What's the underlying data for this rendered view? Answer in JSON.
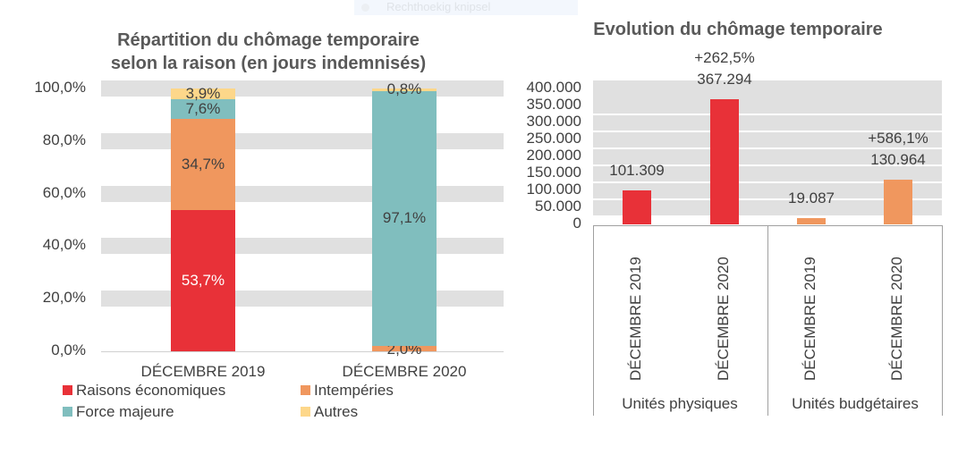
{
  "overlay": {
    "snip_label": "Rechthoekig knipsel"
  },
  "chart_data": [
    {
      "type": "bar",
      "stacked": true,
      "title": "Répartition du chômage temporaire selon la raison (en jours indemnisés)",
      "title_lines": [
        "Répartition du chômage temporaire",
        "selon la raison (en jours indemnisés)"
      ],
      "categories": [
        "DÉCEMBRE 2019",
        "DÉCEMBRE 2020"
      ],
      "ylim": [
        0,
        100
      ],
      "yticks": [
        "0,0%",
        "20,0%",
        "40,0%",
        "60,0%",
        "80,0%",
        "100,0%"
      ],
      "grid": true,
      "legend_position": "bottom",
      "series": [
        {
          "name": "Raisons économiques",
          "color": "#e83138",
          "values": [
            53.7,
            0.0
          ],
          "labels": [
            "53,7%",
            ""
          ]
        },
        {
          "name": "Intempéries",
          "color": "#f0975e",
          "values": [
            34.7,
            2.0
          ],
          "labels": [
            "34,7%",
            "2,0%"
          ]
        },
        {
          "name": "Force majeure",
          "color": "#80bebe",
          "values": [
            7.6,
            97.1
          ],
          "labels": [
            "7,6%",
            "97,1%"
          ]
        },
        {
          "name": "Autres",
          "color": "#fdd78a",
          "values": [
            3.9,
            0.8
          ],
          "labels": [
            "3,9%",
            "0,8%"
          ]
        }
      ]
    },
    {
      "type": "bar",
      "title": "Evolution du chômage temporaire",
      "groups": [
        "Unités physiques",
        "Unités budgétaires"
      ],
      "categories": [
        "DÉCEMBRE 2019",
        "DÉCEMBRE 2020",
        "DÉCEMBRE 2019",
        "DÉCEMBRE 2020"
      ],
      "values": [
        101309,
        367294,
        19087,
        130964
      ],
      "labels": [
        "101.309",
        "367.294",
        "19.087",
        "130.964"
      ],
      "changes": [
        "",
        "+262,5%",
        "",
        "+586,1%"
      ],
      "colors": [
        "#e83138",
        "#e83138",
        "#f0975e",
        "#f0975e"
      ],
      "ylim": [
        0,
        400000
      ],
      "yticks": [
        "0",
        "50.000",
        "100.000",
        "150.000",
        "200.000",
        "250.000",
        "300.000",
        "350.000",
        "400.000"
      ],
      "grid": true
    }
  ]
}
